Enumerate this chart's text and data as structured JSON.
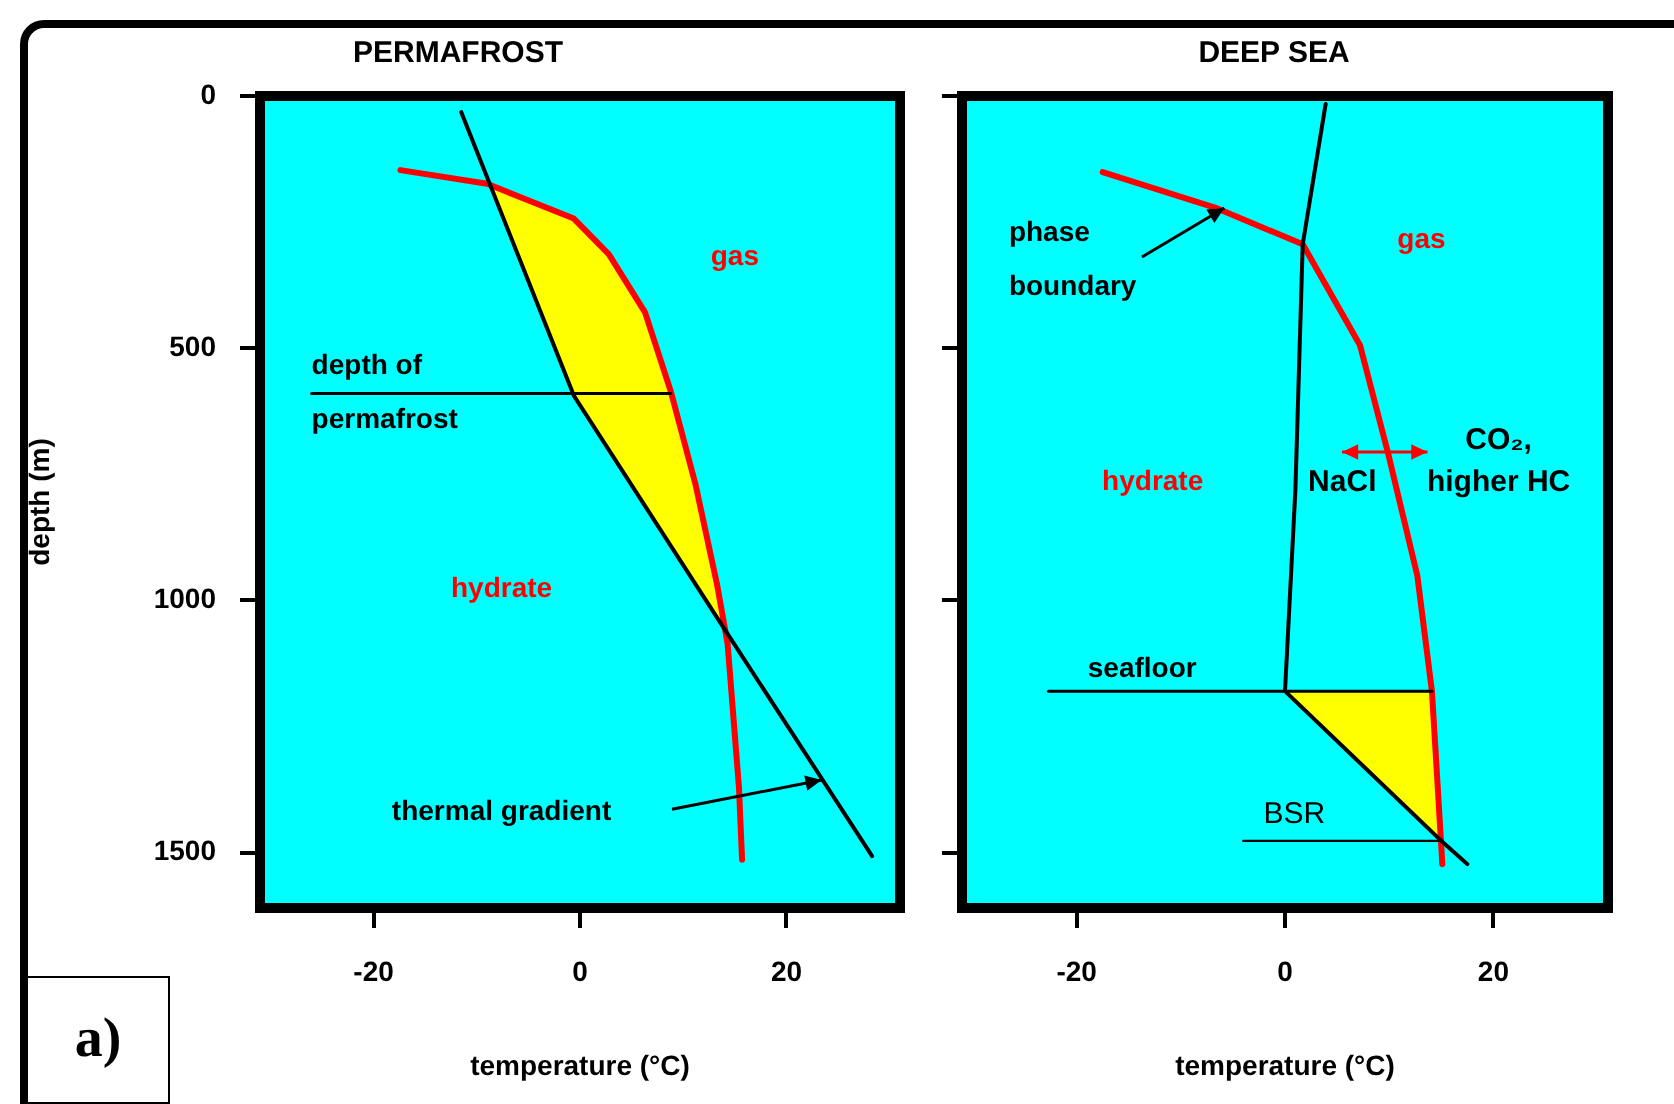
{
  "chart_data": [
    {
      "type": "line",
      "title": "PERMAFROST",
      "xlabel": "temperature (°C)",
      "ylabel": "depth (m)",
      "xlim": [
        -31,
        31
      ],
      "xticks": [
        -20,
        0,
        20
      ],
      "ylim": [
        1610,
        0
      ],
      "yticks": [
        0,
        500,
        1000,
        1500
      ],
      "series": [
        {
          "type": "area",
          "color": "#ffff00",
          "x": [
            -8.75,
            -0.6,
            14,
            13.3,
            11.2,
            8.8,
            6.3,
            2.8,
            -0.6,
            -8.75
          ],
          "values": [
            174,
            594,
            1057,
            971,
            771,
            586,
            429,
            314,
            243,
            174
          ]
        },
        {
          "color": "#ff0000",
          "x": [
            -17.4,
            -9,
            -0.6,
            2.8,
            6.3,
            8.8,
            11.2,
            13.3,
            14.3,
            15.4,
            15.7
          ],
          "values": [
            147,
            174,
            243,
            314,
            429,
            586,
            771,
            971,
            1086,
            1371,
            1514
          ]
        },
        {
          "color": "#000000",
          "x": [
            -11.5,
            -0.6,
            14,
            28.3
          ],
          "values": [
            32,
            594,
            1057,
            1507
          ]
        },
        {
          "color": "#000000",
          "x": [
            -26,
            8.8
          ],
          "values": [
            590,
            590
          ]
        }
      ],
      "annotations": [
        "gas",
        "hydrate",
        "depth of\npermafrost",
        "thermal gradient",
        "a)"
      ]
    },
    {
      "type": "line",
      "title": "DEEP SEA",
      "xlabel": "temperature (°C)",
      "xlim": [
        -31,
        31
      ],
      "xticks": [
        -20,
        0,
        20
      ],
      "ylim": [
        1610,
        0
      ],
      "yticks": [
        0,
        500,
        1000,
        1500
      ],
      "tick_labels": "x",
      "series": [
        {
          "type": "area",
          "color": "#ffff00",
          "x": [
            0,
            14.8,
            14.6,
            14.1,
            0
          ],
          "values": [
            1180,
            1475,
            1350,
            1180,
            1180
          ]
        },
        {
          "color": "#ff0000",
          "x": [
            -17.5,
            -6.5,
            1.7,
            7.2,
            9.9,
            12.7,
            14.1,
            14.6,
            15.1
          ],
          "values": [
            151,
            223,
            294,
            494,
            709,
            951,
            1180,
            1350,
            1523
          ]
        },
        {
          "color": "#000000",
          "x": [
            3.9,
            1.7,
            1,
            0,
            14.8,
            17.5
          ],
          "values": [
            16,
            294,
            780,
            1180,
            1473,
            1523
          ]
        },
        {
          "color": "#000000",
          "x": [
            -22.7,
            14.1
          ],
          "values": [
            1180,
            1180
          ]
        },
        {
          "color": "#000000",
          "x": [
            -4,
            14.8
          ],
          "values": [
            1477,
            1477
          ]
        }
      ],
      "annotations": [
        "gas",
        "hydrate",
        {
          "text": "phase\nboundary",
          "x": -5.8,
          "y": 223
        },
        "NaCl",
        "CO₂,\nhigher HC",
        "seafloor",
        "BSR"
      ]
    }
  ]
}
